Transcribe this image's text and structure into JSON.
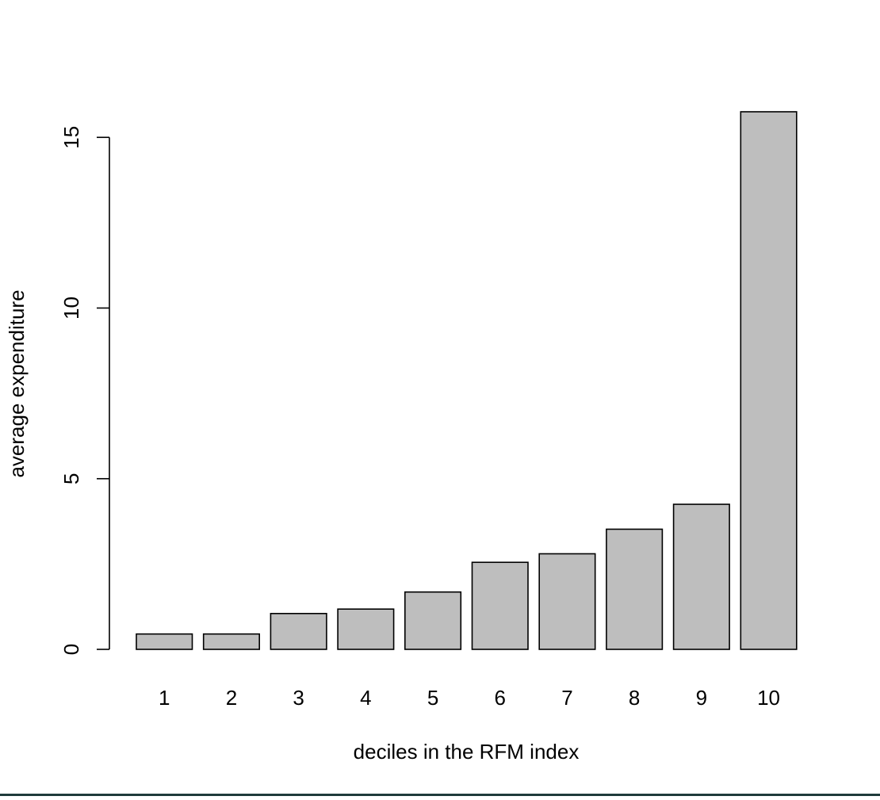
{
  "chart_data": {
    "type": "bar",
    "title": "",
    "xlabel": "deciles in the RFM index",
    "ylabel": "average expenditure",
    "categories": [
      "1",
      "2",
      "3",
      "4",
      "5",
      "6",
      "7",
      "8",
      "9",
      "10"
    ],
    "values": [
      0.45,
      0.45,
      1.05,
      1.18,
      1.68,
      2.55,
      2.8,
      3.52,
      4.25,
      15.75
    ],
    "ylim": [
      0,
      15.75
    ],
    "yticks": [
      0,
      5,
      10,
      15
    ],
    "grid": false,
    "legend": "none",
    "bar_fill": "#bebebe",
    "bar_stroke": "#000000"
  }
}
